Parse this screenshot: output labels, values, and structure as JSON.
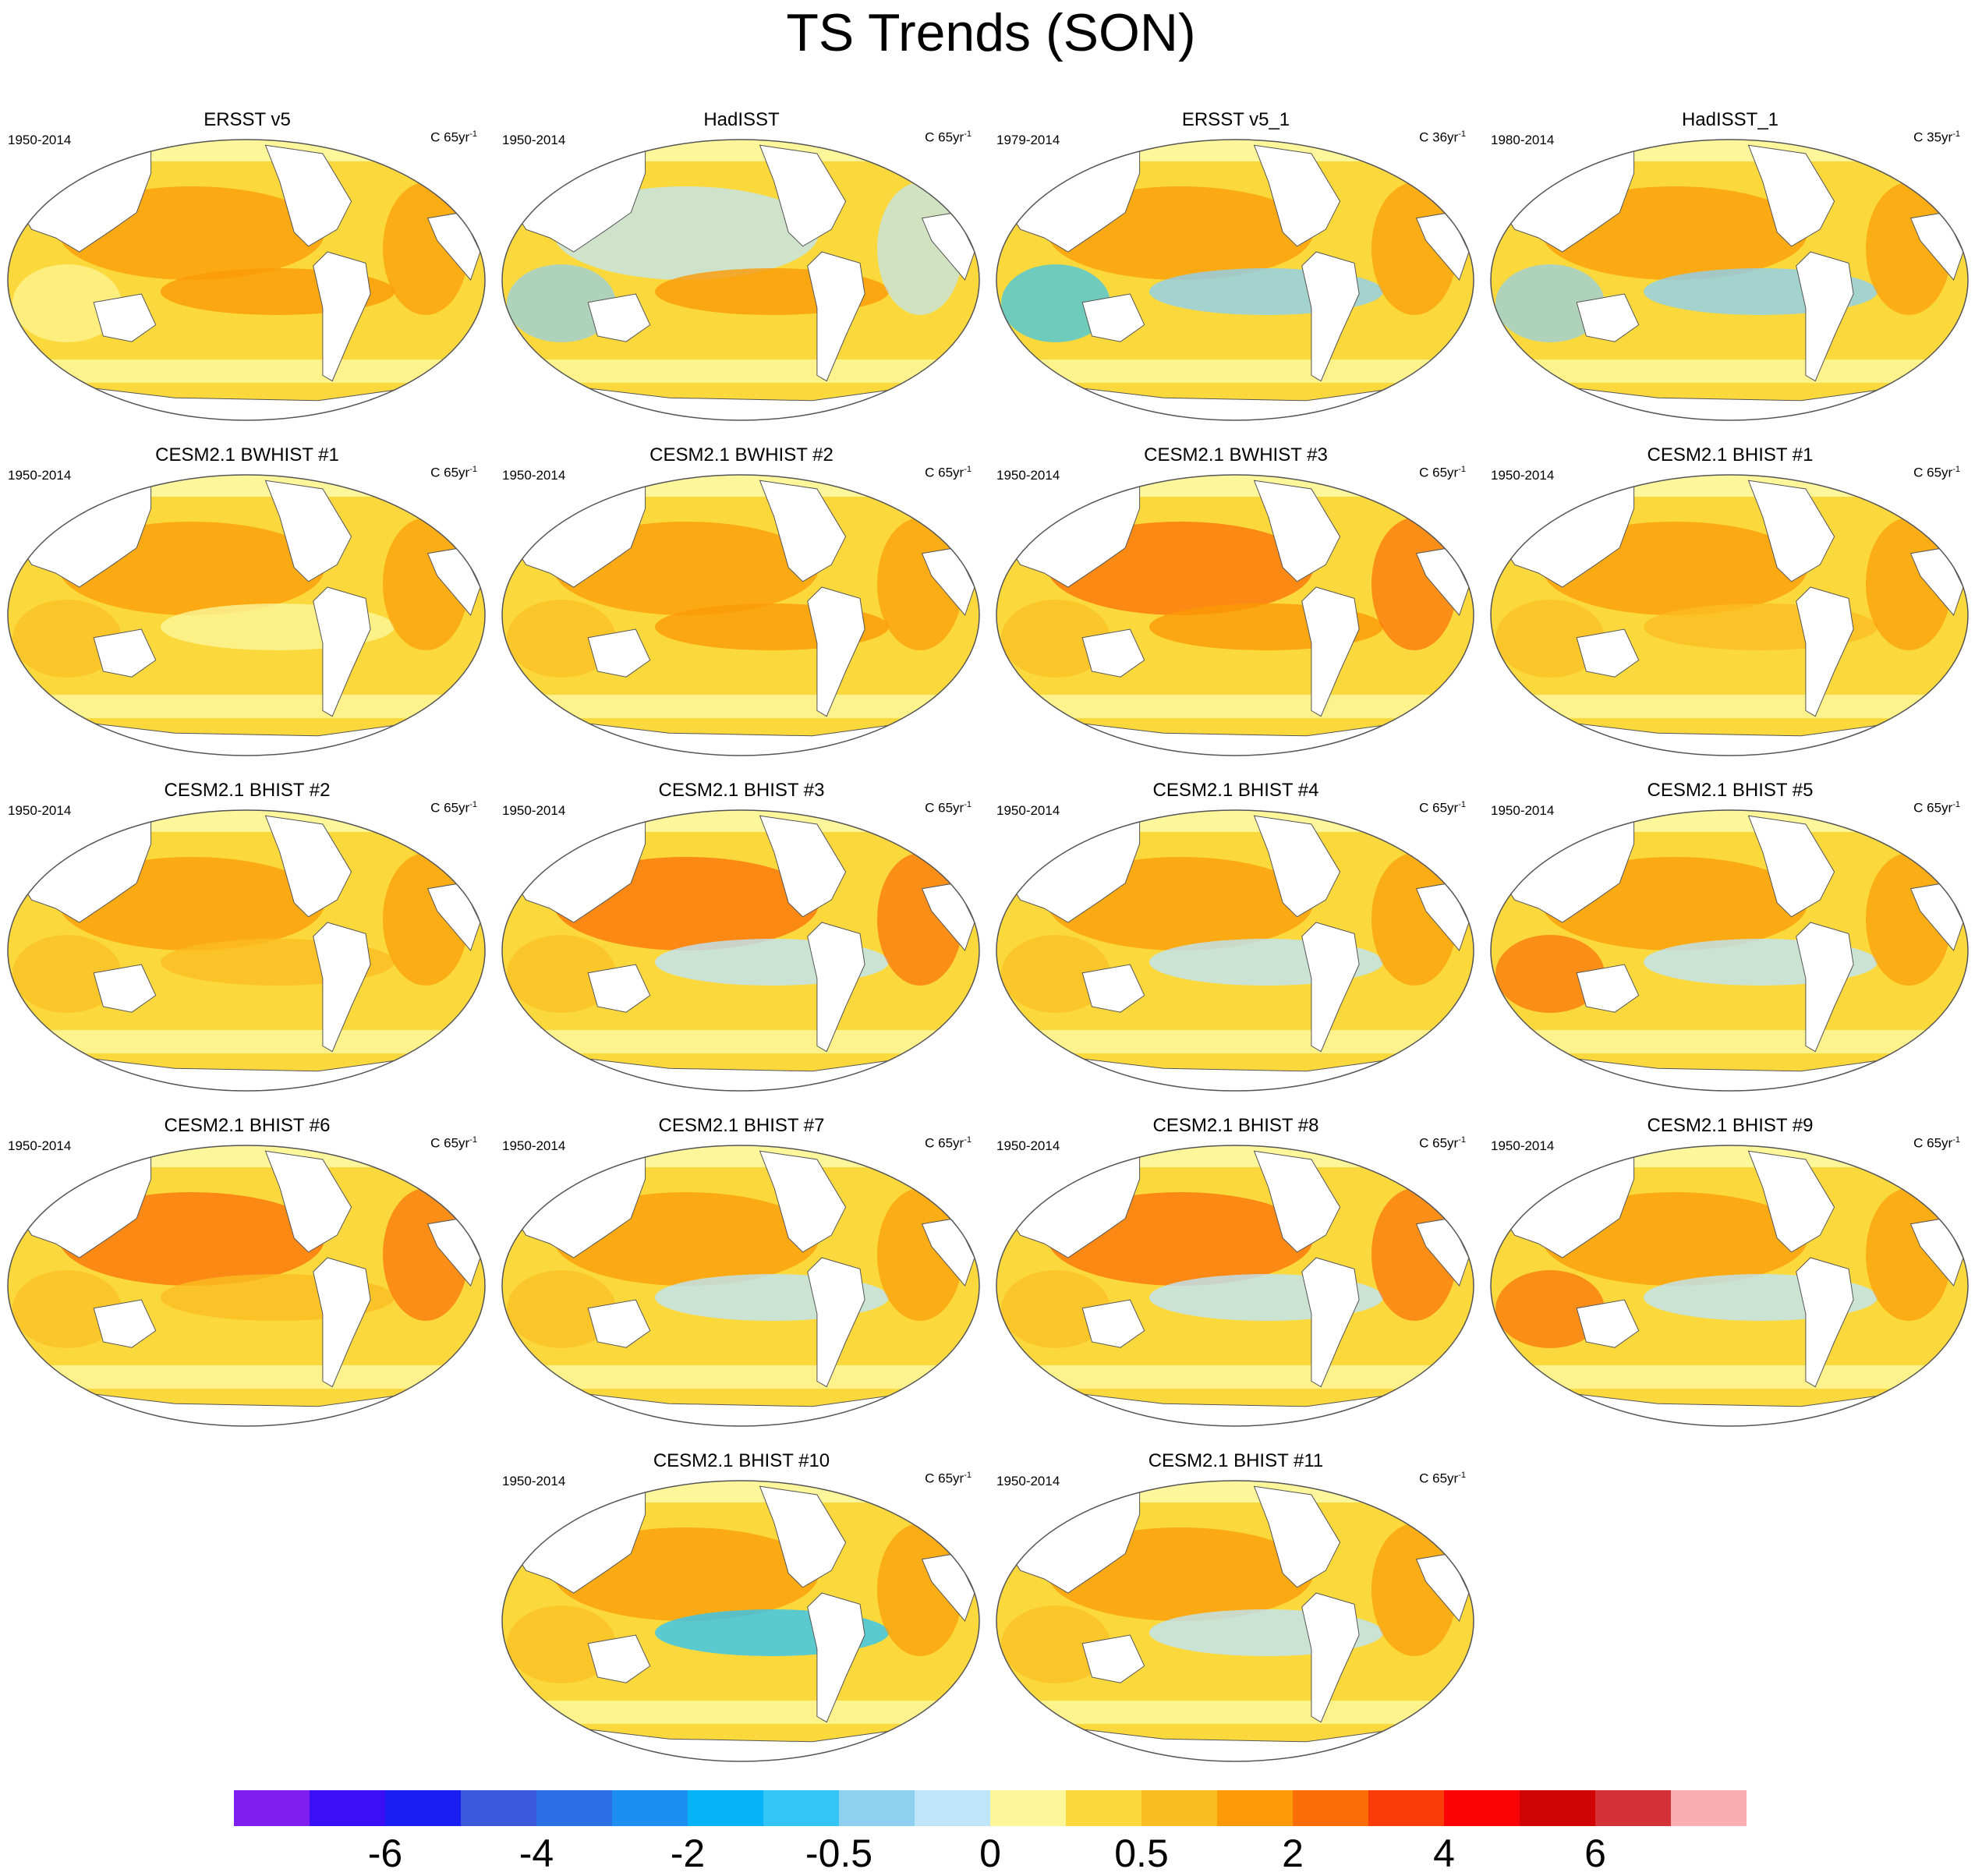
{
  "title": "TS Trends (SON)",
  "panels": [
    {
      "title": "ERSST v5",
      "period": "1950-2014",
      "units": "C 65yr",
      "units_exp": "-1"
    },
    {
      "title": "HadISST",
      "period": "1950-2014",
      "units": "C 65yr",
      "units_exp": "-1"
    },
    {
      "title": "ERSST v5_1",
      "period": "1979-2014",
      "units": "C 36yr",
      "units_exp": "-1"
    },
    {
      "title": "HadISST_1",
      "period": "1980-2014",
      "units": "C 35yr",
      "units_exp": "-1"
    },
    {
      "title": "CESM2.1 BWHIST #1",
      "period": "1950-2014",
      "units": "C 65yr",
      "units_exp": "-1"
    },
    {
      "title": "CESM2.1 BWHIST #2",
      "period": "1950-2014",
      "units": "C 65yr",
      "units_exp": "-1"
    },
    {
      "title": "CESM2.1 BWHIST #3",
      "period": "1950-2014",
      "units": "C 65yr",
      "units_exp": "-1"
    },
    {
      "title": "CESM2.1 BHIST #1",
      "period": "1950-2014",
      "units": "C 65yr",
      "units_exp": "-1"
    },
    {
      "title": "CESM2.1 BHIST #2",
      "period": "1950-2014",
      "units": "C 65yr",
      "units_exp": "-1"
    },
    {
      "title": "CESM2.1 BHIST #3",
      "period": "1950-2014",
      "units": "C 65yr",
      "units_exp": "-1"
    },
    {
      "title": "CESM2.1 BHIST #4",
      "period": "1950-2014",
      "units": "C 65yr",
      "units_exp": "-1"
    },
    {
      "title": "CESM2.1 BHIST #5",
      "period": "1950-2014",
      "units": "C 65yr",
      "units_exp": "-1"
    },
    {
      "title": "CESM2.1 BHIST #6",
      "period": "1950-2014",
      "units": "C 65yr",
      "units_exp": "-1"
    },
    {
      "title": "CESM2.1 BHIST #7",
      "period": "1950-2014",
      "units": "C 65yr",
      "units_exp": "-1"
    },
    {
      "title": "CESM2.1 BHIST #8",
      "period": "1950-2014",
      "units": "C 65yr",
      "units_exp": "-1"
    },
    {
      "title": "CESM2.1 BHIST #9",
      "period": "1950-2014",
      "units": "C 65yr",
      "units_exp": "-1"
    },
    {
      "title": "CESM2.1 BHIST #10",
      "period": "1950-2014",
      "units": "C 65yr",
      "units_exp": "-1"
    },
    {
      "title": "CESM2.1 BHIST #11",
      "period": "1950-2014",
      "units": "C 65yr",
      "units_exp": "-1"
    }
  ],
  "colorbar": {
    "colors": [
      "#7f1fef",
      "#3b0ff6",
      "#1a1ef0",
      "#3a58db",
      "#2b6fe6",
      "#1e8ff2",
      "#05b3f6",
      "#33c6f4",
      "#8fcff0",
      "#bfe5f8",
      "#fdf69a",
      "#fbd93d",
      "#fbbd22",
      "#fb9a06",
      "#fb6d07",
      "#fa3c08",
      "#fb0205",
      "#d00305",
      "#d43237",
      "#f9aeb1"
    ],
    "labels": [
      {
        "text": "-6",
        "boundary": 2
      },
      {
        "text": "-4",
        "boundary": 4
      },
      {
        "text": "-2",
        "boundary": 6
      },
      {
        "text": "-0.5",
        "boundary": 8
      },
      {
        "text": "0",
        "boundary": 10
      },
      {
        "text": "0.5",
        "boundary": 12
      },
      {
        "text": "2",
        "boundary": 14
      },
      {
        "text": "4",
        "boundary": 16
      },
      {
        "text": "6",
        "boundary": 18
      }
    ]
  },
  "fills": {
    "land": "#ffffff",
    "base_ocean": "#fbd93d",
    "polar": "#fdf69a",
    "outline": "#555555"
  }
}
